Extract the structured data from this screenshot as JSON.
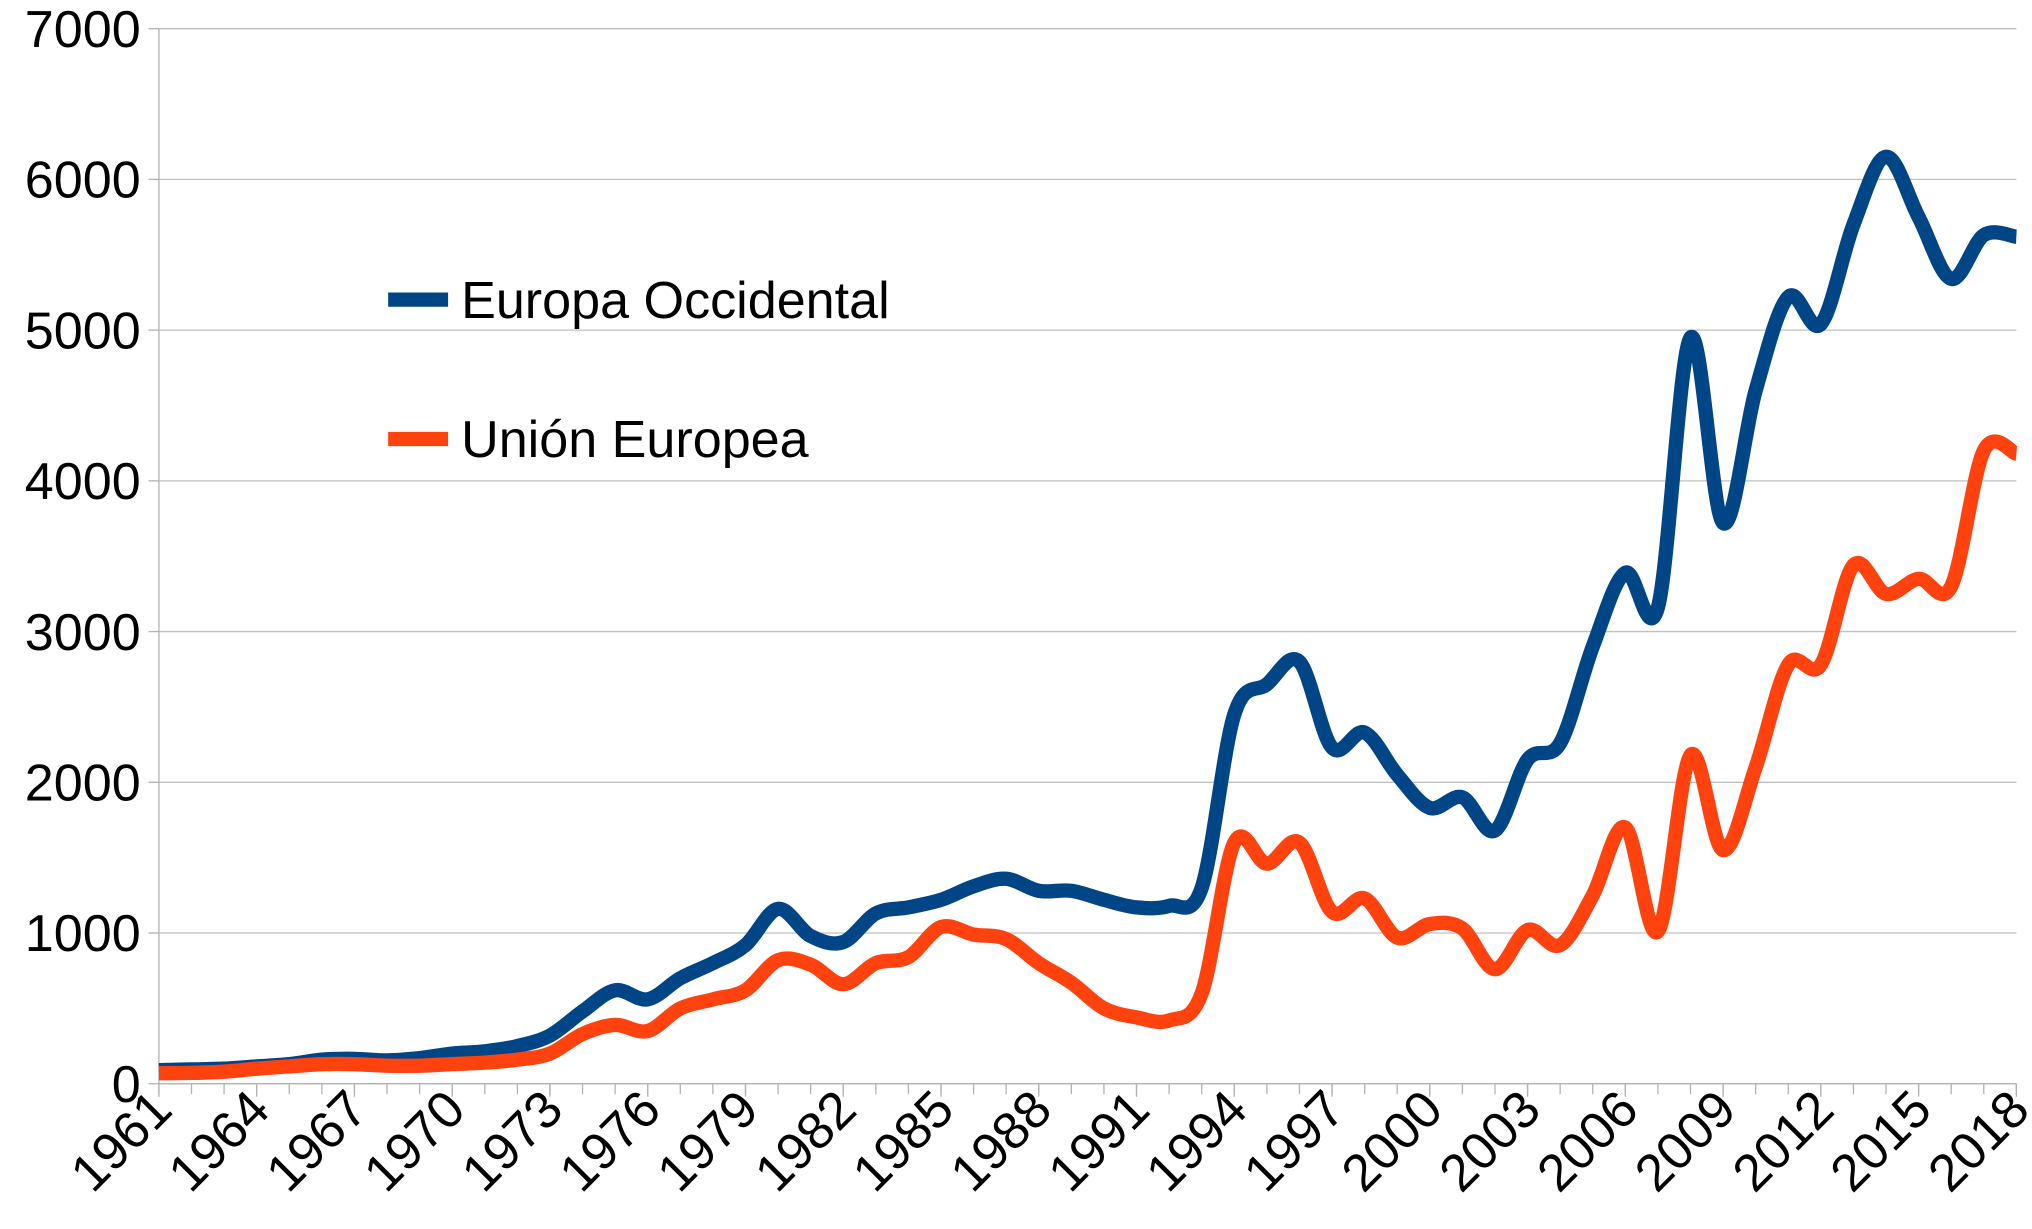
{
  "chart_data": {
    "type": "line",
    "x": [
      1961,
      1962,
      1963,
      1964,
      1965,
      1966,
      1967,
      1968,
      1969,
      1970,
      1971,
      1972,
      1973,
      1974,
      1975,
      1976,
      1977,
      1978,
      1979,
      1980,
      1981,
      1982,
      1983,
      1984,
      1985,
      1986,
      1987,
      1988,
      1989,
      1990,
      1991,
      1992,
      1993,
      1994,
      1995,
      1996,
      1997,
      1998,
      1999,
      2000,
      2001,
      2002,
      2003,
      2004,
      2005,
      2006,
      2007,
      2008,
      2009,
      2010,
      2011,
      2012,
      2013,
      2014,
      2015,
      2016,
      2017,
      2018
    ],
    "series": [
      {
        "name": "Europa Occidental",
        "color": "#004586",
        "values": [
          90,
          95,
          100,
          115,
          130,
          160,
          165,
          155,
          170,
          200,
          215,
          250,
          320,
          480,
          620,
          560,
          700,
          800,
          920,
          1160,
          980,
          940,
          1130,
          1170,
          1220,
          1310,
          1360,
          1280,
          1280,
          1220,
          1170,
          1180,
          1300,
          2450,
          2650,
          2800,
          2230,
          2330,
          2050,
          1830,
          1900,
          1680,
          2150,
          2260,
          2900,
          3390,
          3160,
          4950,
          3720,
          4600,
          5220,
          5040,
          5700,
          6150,
          5750,
          5340,
          5630,
          5620
        ]
      },
      {
        "name": "Unión Europea",
        "color": "#ff420e",
        "values": [
          70,
          72,
          80,
          100,
          115,
          130,
          130,
          120,
          120,
          130,
          140,
          160,
          200,
          330,
          390,
          350,
          500,
          560,
          620,
          820,
          790,
          660,
          800,
          840,
          1040,
          990,
          960,
          800,
          670,
          500,
          440,
          420,
          600,
          1600,
          1460,
          1600,
          1140,
          1230,
          970,
          1060,
          1030,
          760,
          1020,
          920,
          1250,
          1700,
          1010,
          2180,
          1550,
          2100,
          2780,
          2780,
          3440,
          3250,
          3350,
          3300,
          4200,
          4180
        ]
      }
    ],
    "xlim": [
      1961,
      2018
    ],
    "xticks": [
      1961,
      1964,
      1967,
      1970,
      1973,
      1976,
      1979,
      1982,
      1985,
      1988,
      1991,
      1994,
      1997,
      2000,
      2003,
      2006,
      2009,
      2012,
      2015,
      2018
    ],
    "ylim": [
      0,
      7000
    ],
    "yticks": [
      0,
      1000,
      2000,
      3000,
      4000,
      5000,
      6000,
      7000
    ],
    "grid": true,
    "legend": "upper left"
  }
}
